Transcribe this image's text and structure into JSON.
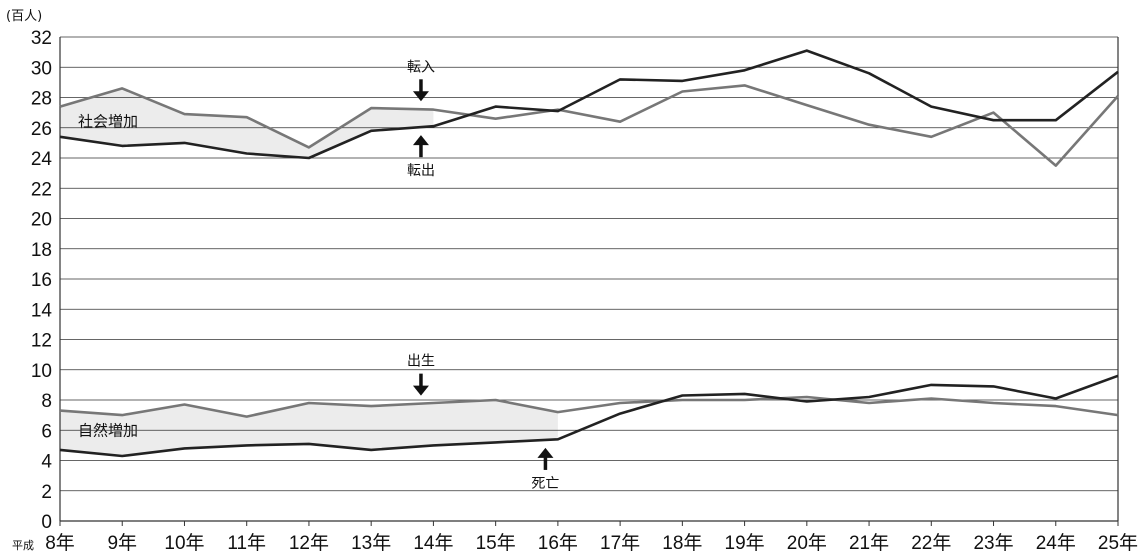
{
  "header": {
    "title_visible": ""
  },
  "chart_data": {
    "type": "line",
    "unit_label": "(百人)",
    "x_prefix": "平成",
    "categories": [
      "8年",
      "9年",
      "10年",
      "11年",
      "12年",
      "13年",
      "14年",
      "15年",
      "16年",
      "17年",
      "18年",
      "19年",
      "20年",
      "21年",
      "22年",
      "23年",
      "24年",
      "25年"
    ],
    "ylim": [
      0,
      32
    ],
    "yticks": [
      0,
      2,
      4,
      6,
      8,
      10,
      12,
      14,
      16,
      18,
      20,
      22,
      24,
      26,
      28,
      30,
      32
    ],
    "grid": true,
    "series": [
      {
        "name": "転入",
        "color": "#777777",
        "values": [
          27.4,
          28.6,
          26.9,
          26.7,
          24.7,
          27.3,
          27.2,
          26.6,
          27.2,
          26.4,
          28.4,
          28.8,
          27.5,
          26.2,
          25.4,
          27.0,
          23.5,
          28.1
        ]
      },
      {
        "name": "転出",
        "color": "#222222",
        "values": [
          25.4,
          24.8,
          25.0,
          24.3,
          24.0,
          25.8,
          26.1,
          27.4,
          27.1,
          29.2,
          29.1,
          29.8,
          31.1,
          29.6,
          27.4,
          26.5,
          26.5,
          29.7
        ]
      },
      {
        "name": "出生",
        "color": "#777777",
        "values": [
          7.3,
          7.0,
          7.7,
          6.9,
          7.8,
          7.6,
          7.8,
          8.0,
          7.2,
          7.8,
          8.0,
          8.0,
          8.2,
          7.8,
          8.1,
          7.8,
          7.6,
          7.0
        ]
      },
      {
        "name": "死亡",
        "color": "#222222",
        "values": [
          4.7,
          4.3,
          4.8,
          5.0,
          5.1,
          4.7,
          5.0,
          5.2,
          5.4,
          7.1,
          8.3,
          8.4,
          7.9,
          8.2,
          9.0,
          8.9,
          8.1,
          9.6
        ]
      }
    ],
    "shaded_regions": [
      {
        "label": "社会増加",
        "upper": "転入",
        "lower": "転出",
        "from_index": 0,
        "to_index": 6
      },
      {
        "label": "自然増加",
        "upper": "出生",
        "lower": "死亡",
        "from_index": 0,
        "to_index": 8
      }
    ],
    "annotations": [
      {
        "text": "転入",
        "target": "転入",
        "at_index": 5.8,
        "arrow": "down"
      },
      {
        "text": "転出",
        "target": "転出",
        "at_index": 5.8,
        "arrow": "up"
      },
      {
        "text": "出生",
        "target": "出生",
        "at_index": 5.8,
        "arrow": "down"
      },
      {
        "text": "死亡",
        "target": "死亡",
        "at_index": 7.8,
        "arrow": "up"
      }
    ],
    "colors": {
      "grid": "#333333",
      "shade": "#ececec"
    }
  }
}
